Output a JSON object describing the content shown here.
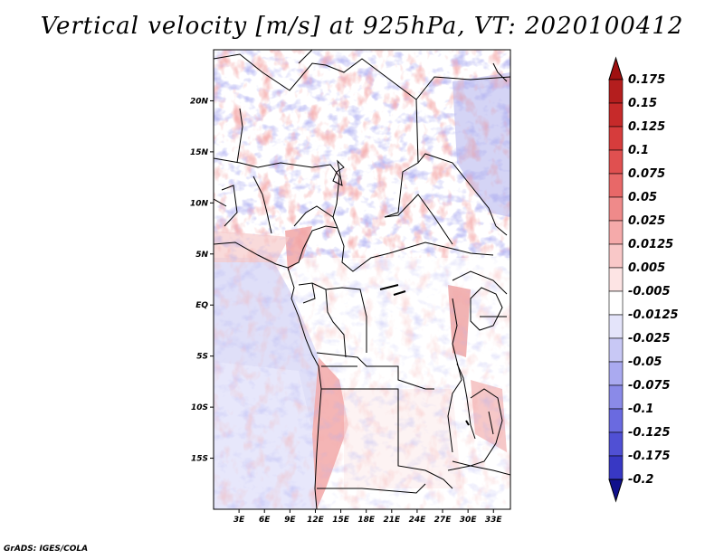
{
  "figure": {
    "title": "Vertical velocity [m/s] at 925hPa, VT: 2020100412",
    "credit": "GrADS: IGES/COLA"
  },
  "map": {
    "region": "Central Africa",
    "lon_range": [
      0,
      35
    ],
    "lat_range": [
      -20,
      25
    ],
    "lat_ticks": [
      {
        "value": 20,
        "label": "20N"
      },
      {
        "value": 15,
        "label": "15N"
      },
      {
        "value": 10,
        "label": "10N"
      },
      {
        "value": 5,
        "label": "5N"
      },
      {
        "value": 0,
        "label": "EQ"
      },
      {
        "value": -5,
        "label": "5S"
      },
      {
        "value": -10,
        "label": "10S"
      },
      {
        "value": -15,
        "label": "15S"
      }
    ],
    "lon_ticks": [
      {
        "value": 3,
        "label": "3E"
      },
      {
        "value": 6,
        "label": "6E"
      },
      {
        "value": 9,
        "label": "9E"
      },
      {
        "value": 12,
        "label": "12E"
      },
      {
        "value": 15,
        "label": "15E"
      },
      {
        "value": 18,
        "label": "18E"
      },
      {
        "value": 21,
        "label": "21E"
      },
      {
        "value": 24,
        "label": "24E"
      },
      {
        "value": 27,
        "label": "27E"
      },
      {
        "value": 30,
        "label": "30E"
      },
      {
        "value": 33,
        "label": "33E"
      }
    ]
  },
  "colorbar": {
    "levels": [
      {
        "label": "0.175",
        "color": "#b41e1e"
      },
      {
        "label": "0.15",
        "color": "#c62a2a"
      },
      {
        "label": "0.125",
        "color": "#d63c3c"
      },
      {
        "label": "0.1",
        "color": "#e05050"
      },
      {
        "label": "0.075",
        "color": "#e86868"
      },
      {
        "label": "0.05",
        "color": "#ef8a8a"
      },
      {
        "label": "0.025",
        "color": "#f5aaaa"
      },
      {
        "label": "0.0125",
        "color": "#f9c8c8"
      },
      {
        "label": "0.005",
        "color": "#fde4e4"
      },
      {
        "label": "-0.005",
        "color": "#ffffff"
      },
      {
        "label": "-0.0125",
        "color": "#e4e4fa"
      },
      {
        "label": "-0.025",
        "color": "#c8c8f5"
      },
      {
        "label": "-0.05",
        "color": "#aaaaf0"
      },
      {
        "label": "-0.075",
        "color": "#8a8ae8"
      },
      {
        "label": "-0.1",
        "color": "#6a6ae0"
      },
      {
        "label": "-0.125",
        "color": "#5050d4"
      },
      {
        "label": "-0.175",
        "color": "#3838c4"
      },
      {
        "label": "-0.2",
        "color": "#2222b0"
      }
    ],
    "top_triangle_color": "#a01010",
    "bottom_triangle_color": "#10108c"
  },
  "colors": {
    "positive": "#e05a5a",
    "negative": "#6a6ae0",
    "border": "#000000"
  }
}
